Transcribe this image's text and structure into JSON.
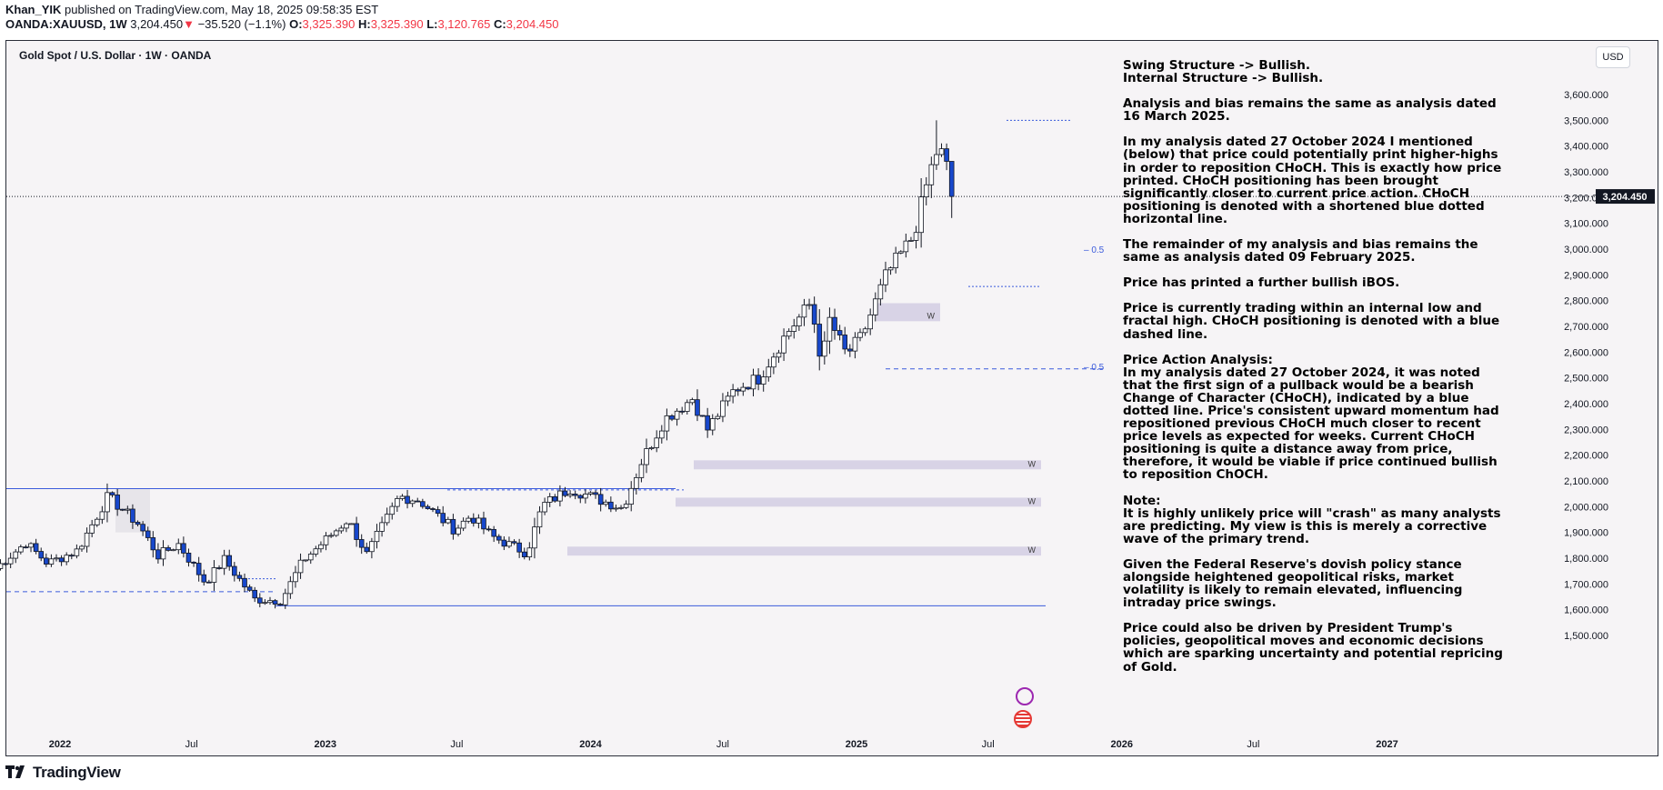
{
  "header": {
    "author": "Khan_YIK",
    "published": "published on TradingView.com, May 18, 2025 09:58:35 EST",
    "symbol": "OANDA:XAUUSD, 1W",
    "last": "3,204.450",
    "arrow": "▼",
    "change": "−35.520 (−1.1%)",
    "o_label": "O:",
    "o_val": "3,325.390",
    "h_label": "H:",
    "h_val": "3,325.390",
    "l_label": "L:",
    "l_val": "3,120.765",
    "c_label": "C:",
    "c_val": "3,204.450"
  },
  "chart_title": "Gold Spot / U.S. Dollar · 1W · OANDA",
  "currency": "USD",
  "price_label": "3,204.450",
  "fib_label": "0.5",
  "zone_label": "W",
  "brand": "TradingView",
  "analysis": [
    "Swing Structure -> Bullish.\nInternal Structure -> Bullish.",
    "Analysis and bias remains the same as analysis dated 16 March 2025.",
    "In my analysis dated 27 October 2024 I mentioned (below) that price could potentially print higher-highs in order to reposition CHoCH.  This is exactly how price printed.  CHoCH positioning has been brought significantly closer to current price action.  CHoCH positioning is denoted with a shortened blue dotted horizontal line.",
    "The remainder of my analysis and bias remains the same as analysis dated 09 February 2025.",
    "Price has printed a further bullish iBOS.",
    "Price is currently trading within an internal low and fractal high.  CHoCH positioning is denoted with a blue dashed line.",
    "Price Action Analysis:\nIn my analysis dated 27 October 2024, it was noted that the first sign of a pullback would be a bearish Change of Character (CHoCH), indicated by a blue dotted line. Price's consistent upward momentum had repositioned previous CHoCH much closer to recent price levels as expected for weeks. Current CHoCH positioning is quite a distance away from price, therefore, it would be viable if price continued bullish to reposition ChOCH.",
    "Note:\nIt is highly unlikely price will \"crash\" as many analysts are predicting.  My view is this is merely a corrective wave of the primary trend.",
    "Given the Federal Reserve's dovish policy stance alongside heightened geopolitical risks, market volatility is likely to remain elevated, influencing intraday price swings.",
    "Price could also be driven by President Trump's policies, geopolitical moves and economic decisions which are sparking uncertainty and potential repricing of Gold."
  ],
  "chart_data": {
    "type": "candlestick",
    "title": "Gold Spot / U.S. Dollar · 1W · OANDA",
    "y_axis": {
      "ticks": [
        "3,600.000",
        "3,500.000",
        "3,400.000",
        "3,300.000",
        "3,200.000",
        "3,100.000",
        "3,000.000",
        "2,900.000",
        "2,800.000",
        "2,700.000",
        "2,600.000",
        "2,500.000",
        "2,400.000",
        "2,300.000",
        "2,200.000",
        "2,100.000",
        "2,000.000",
        "1,900.000",
        "1,800.000",
        "1,700.000",
        "1,600.000",
        "1,500.000"
      ],
      "range": [
        1460,
        3660
      ],
      "position": "right"
    },
    "x_axis": {
      "ticks": [
        "2022",
        "Jul",
        "2023",
        "Jul",
        "2024",
        "Jul",
        "2025",
        "Jul",
        "2026",
        "Jul",
        "2027"
      ],
      "range": [
        "2021-10-01",
        "2027-03-01"
      ]
    },
    "last_price": 3204.45,
    "anchors": [
      {
        "date": "2021-10-04",
        "price": 1760
      },
      {
        "date": "2021-11-15",
        "price": 1860
      },
      {
        "date": "2021-12-15",
        "price": 1780
      },
      {
        "date": "2022-01-25",
        "price": 1830
      },
      {
        "date": "2022-03-08",
        "price": 2040
      },
      {
        "date": "2022-04-18",
        "price": 1935
      },
      {
        "date": "2022-05-16",
        "price": 1810
      },
      {
        "date": "2022-06-13",
        "price": 1855
      },
      {
        "date": "2022-07-20",
        "price": 1705
      },
      {
        "date": "2022-08-15",
        "price": 1795
      },
      {
        "date": "2022-09-26",
        "price": 1640
      },
      {
        "date": "2022-11-01",
        "price": 1635
      },
      {
        "date": "2022-12-01",
        "price": 1790
      },
      {
        "date": "2023-02-01",
        "price": 1950
      },
      {
        "date": "2023-02-27",
        "price": 1815
      },
      {
        "date": "2023-04-13",
        "price": 2040
      },
      {
        "date": "2023-05-10",
        "price": 2025
      },
      {
        "date": "2023-06-28",
        "price": 1910
      },
      {
        "date": "2023-07-20",
        "price": 1965
      },
      {
        "date": "2023-08-18",
        "price": 1885
      },
      {
        "date": "2023-10-05",
        "price": 1820
      },
      {
        "date": "2023-10-27",
        "price": 2005
      },
      {
        "date": "2023-12-04",
        "price": 2070
      },
      {
        "date": "2024-01-10",
        "price": 2030
      },
      {
        "date": "2024-02-14",
        "price": 1995
      },
      {
        "date": "2024-03-12",
        "price": 2180
      },
      {
        "date": "2024-04-12",
        "price": 2340
      },
      {
        "date": "2024-05-20",
        "price": 2420
      },
      {
        "date": "2024-06-10",
        "price": 2300
      },
      {
        "date": "2024-07-17",
        "price": 2455
      },
      {
        "date": "2024-08-20",
        "price": 2500
      },
      {
        "date": "2024-09-26",
        "price": 2670
      },
      {
        "date": "2024-10-30",
        "price": 2790
      },
      {
        "date": "2024-11-14",
        "price": 2560
      },
      {
        "date": "2024-11-25",
        "price": 2725
      },
      {
        "date": "2024-12-18",
        "price": 2590
      },
      {
        "date": "2025-01-08",
        "price": 2660
      },
      {
        "date": "2025-02-11",
        "price": 2900
      },
      {
        "date": "2025-03-20",
        "price": 3050
      },
      {
        "date": "2025-04-12",
        "price": 3300
      },
      {
        "date": "2025-04-24",
        "price": 3400
      },
      {
        "date": "2025-05-05",
        "price": 3320
      },
      {
        "date": "2025-05-12",
        "price": 3204
      }
    ]
  }
}
